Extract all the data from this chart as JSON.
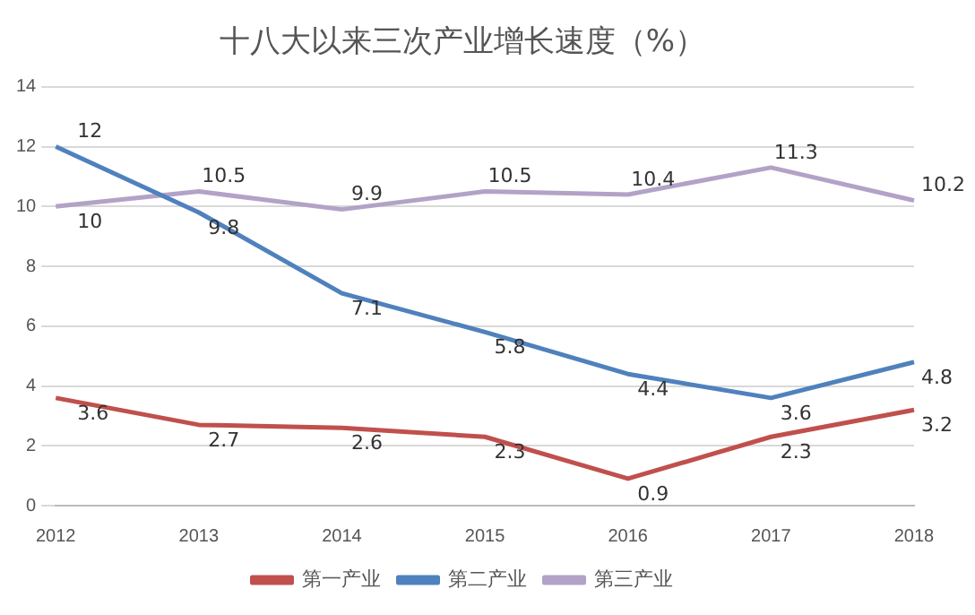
{
  "chart_data": {
    "type": "line",
    "title": "十八大以来三次产业增长速度（%）",
    "categories": [
      "2012",
      "2013",
      "2014",
      "2015",
      "2016",
      "2017",
      "2018"
    ],
    "series": [
      {
        "name": "第一产业",
        "color": "#c0504d",
        "values": [
          3.6,
          2.7,
          2.6,
          2.3,
          0.9,
          2.3,
          3.2
        ]
      },
      {
        "name": "第二产业",
        "color": "#4f81bd",
        "values": [
          12,
          9.8,
          7.1,
          5.8,
          4.4,
          3.6,
          4.8
        ]
      },
      {
        "name": "第三产业",
        "color": "#b3a2c7",
        "values": [
          10,
          10.5,
          9.9,
          10.5,
          10.4,
          11.3,
          10.2
        ]
      }
    ],
    "ylim": [
      0,
      14
    ],
    "yticks": [
      0,
      2,
      4,
      6,
      8,
      10,
      12,
      14
    ],
    "grid": "y",
    "legend": "bottom",
    "data_labels": true,
    "marker": "none"
  }
}
